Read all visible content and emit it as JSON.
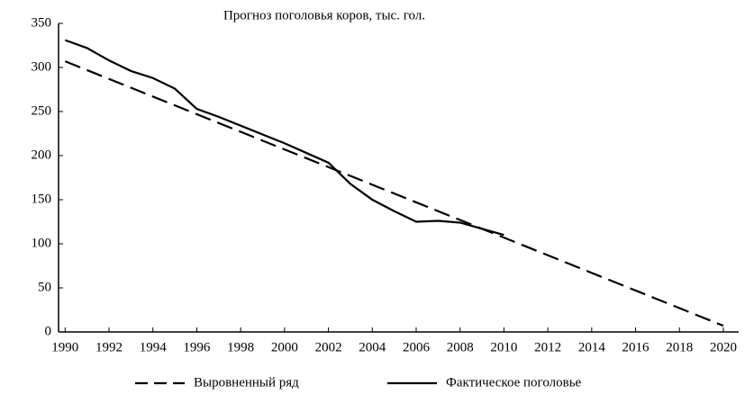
{
  "chart_data": {
    "type": "line",
    "title": "Прогноз поголовья коров, тыс. гол.",
    "x": [
      1990,
      1991,
      1992,
      1993,
      1994,
      1995,
      1996,
      1997,
      1998,
      1999,
      2000,
      2001,
      2002,
      2003,
      2004,
      2005,
      2006,
      2007,
      2008,
      2009,
      2010,
      2011,
      2012,
      2013,
      2014,
      2015,
      2016,
      2017,
      2018,
      2019,
      2020
    ],
    "series": [
      {
        "name": "Выровненный ряд",
        "color": "#000000",
        "dash": true,
        "values": [
          307,
          297,
          287,
          277,
          267,
          257,
          247,
          237,
          227,
          217,
          207,
          197,
          187,
          177,
          167,
          157,
          147,
          137,
          127,
          117,
          107,
          97,
          87,
          77,
          67,
          57,
          47,
          37,
          27,
          17,
          7
        ]
      },
      {
        "name": "Фактическое поголовье",
        "color": "#000000",
        "dash": false,
        "values": [
          331,
          322,
          308,
          296,
          288,
          276,
          253,
          244,
          234,
          224,
          214,
          203,
          192,
          168,
          150,
          137,
          125,
          126,
          124,
          117,
          110,
          null,
          null,
          null,
          null,
          null,
          null,
          null,
          null,
          null,
          null
        ]
      }
    ],
    "xlim": [
      1989.7,
      2020.7
    ],
    "xticks": [
      1990,
      1992,
      1994,
      1996,
      1998,
      2000,
      2002,
      2004,
      2006,
      2008,
      2010,
      2012,
      2014,
      2016,
      2018,
      2020
    ],
    "ylim": [
      0,
      350
    ],
    "yticks": [
      0,
      50,
      100,
      150,
      200,
      250,
      300,
      350
    ],
    "grid": false,
    "legend": "bottom"
  }
}
